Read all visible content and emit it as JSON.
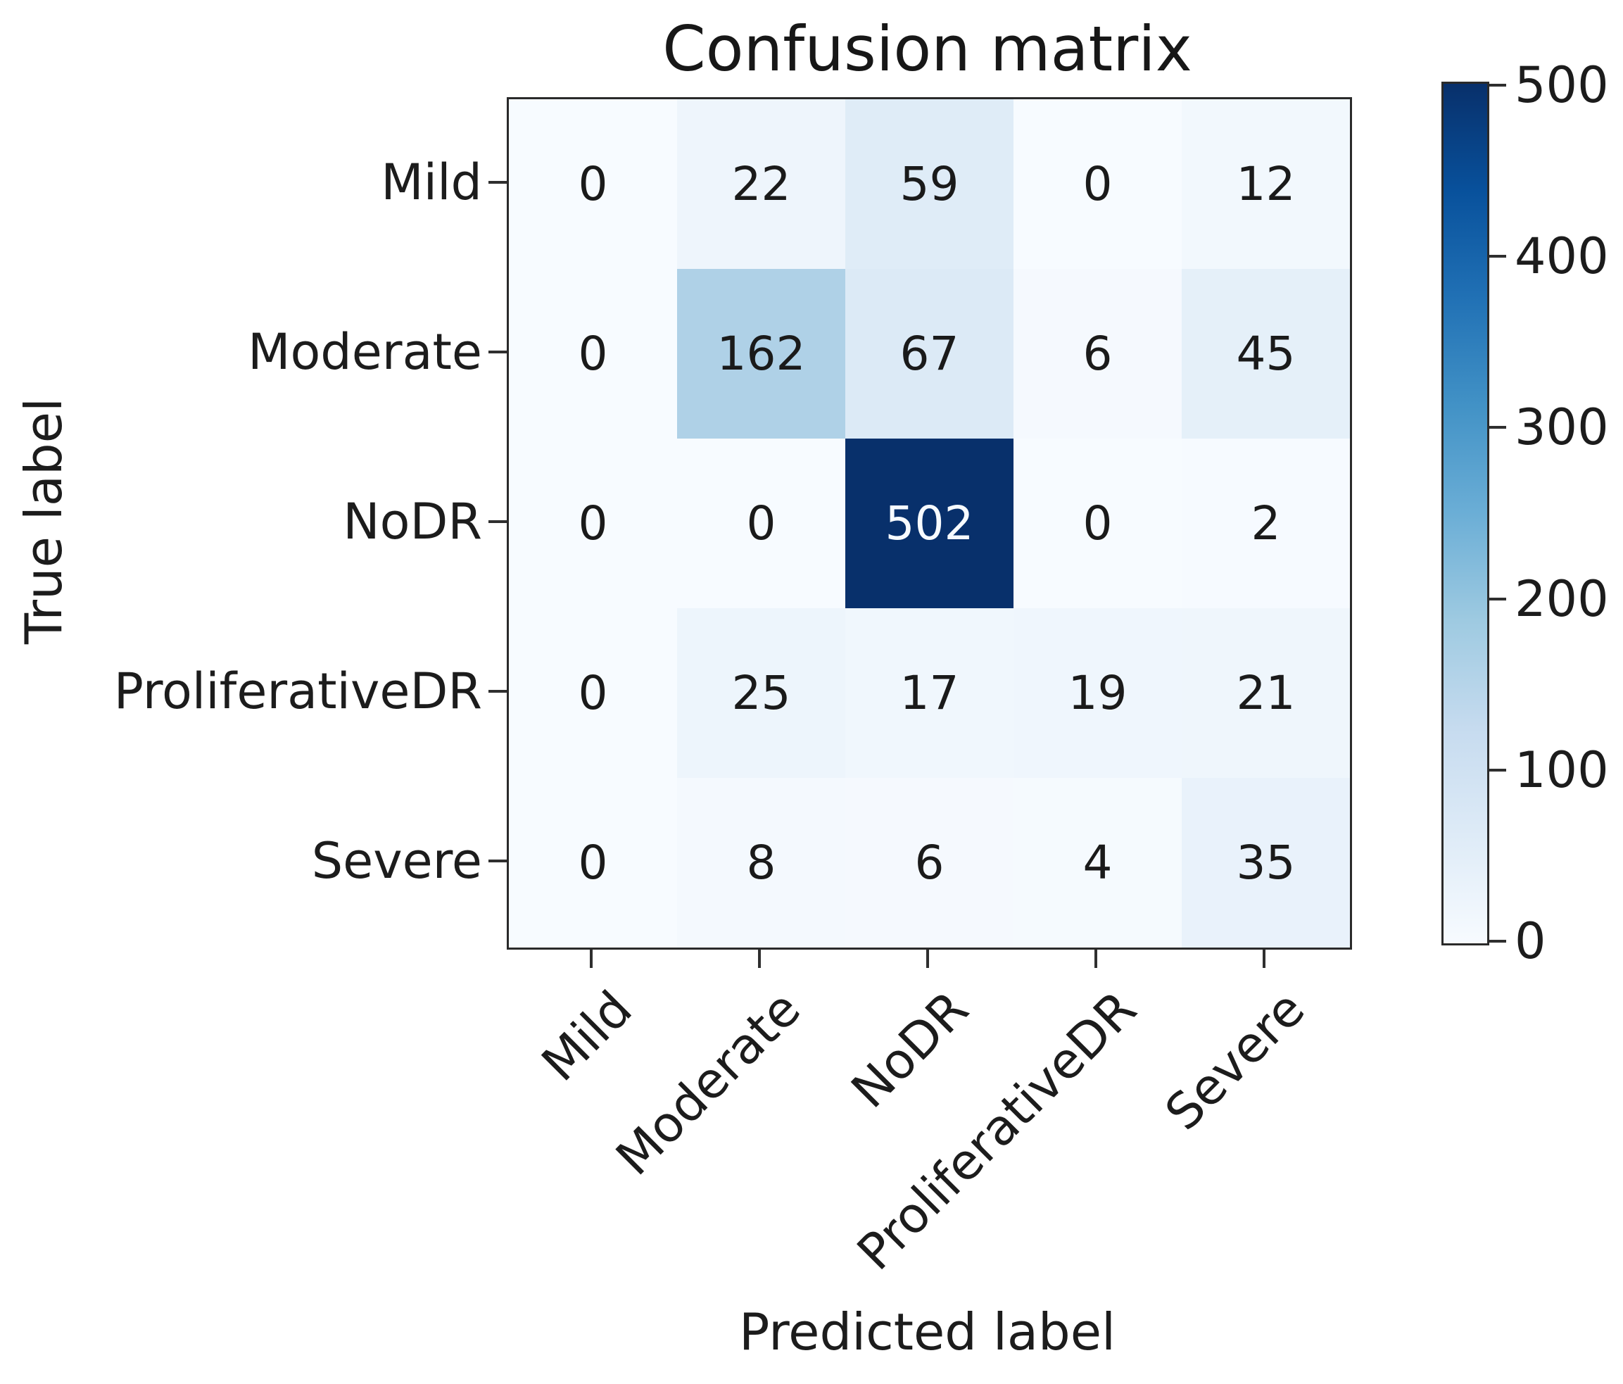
{
  "chart_data": {
    "type": "heatmap",
    "title": "Confusion matrix",
    "xlabel": "Predicted label",
    "ylabel": "True label",
    "categories": [
      "Mild",
      "Moderate",
      "NoDR",
      "ProliferativeDR",
      "Severe"
    ],
    "matrix": [
      [
        0,
        22,
        59,
        0,
        12
      ],
      [
        0,
        162,
        67,
        6,
        45
      ],
      [
        0,
        0,
        502,
        0,
        2
      ],
      [
        0,
        25,
        17,
        19,
        21
      ],
      [
        0,
        8,
        6,
        4,
        35
      ]
    ],
    "colormap": "Blues",
    "colormap_stops": [
      "#f7fbff",
      "#deebf7",
      "#c6dbef",
      "#9ecae1",
      "#6baed6",
      "#4292c6",
      "#2171b5",
      "#08519c",
      "#08306b"
    ],
    "vmin": 0,
    "vmax": 502,
    "colorbar_ticks": [
      0,
      100,
      200,
      300,
      400,
      500
    ],
    "colorbar_position": "right",
    "grid": "off",
    "cell_text_color_light_cell": "#1a1a1a",
    "cell_text_color_dark_cell": "#f7fbff"
  }
}
